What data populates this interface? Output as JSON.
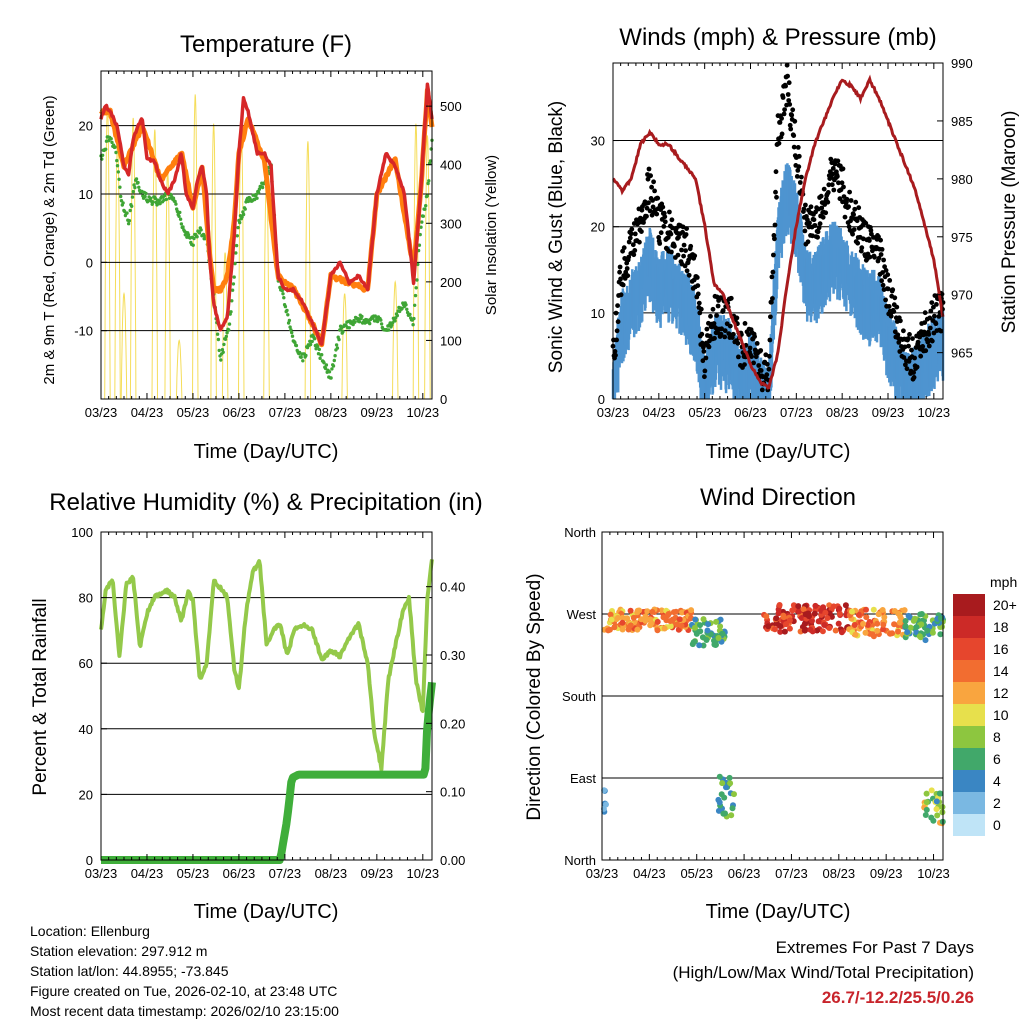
{
  "chart_data": [
    {
      "type": "line",
      "title": "Temperature (F)",
      "xlabel": "Time (Day/UTC)",
      "ylabel": "2m & 9m T (Red, Orange) & 2m Td (Green)",
      "y2label": "Solar Insolation (Yellow)",
      "ylim": [
        -20,
        28
      ],
      "y2lim": [
        0,
        560
      ],
      "yticks": [
        "20",
        "10",
        "0",
        "-10"
      ],
      "y2ticks": [
        "500",
        "400",
        "300",
        "200",
        "100",
        "0"
      ],
      "categories": [
        "03/23",
        "04/23",
        "05/23",
        "06/23",
        "07/23",
        "08/23",
        "09/23",
        "10/23"
      ],
      "series": [
        {
          "name": "2m T",
          "color": "#d62728",
          "x": [
            0,
            0.1,
            0.2,
            0.35,
            0.5,
            0.6,
            0.7,
            0.8,
            0.9,
            1.0,
            1.15,
            1.3,
            1.45,
            1.6,
            1.75,
            1.85,
            2.0,
            2.1,
            2.2,
            2.3,
            2.35,
            2.45,
            2.6,
            2.75,
            2.9,
            3.0,
            3.1,
            3.2,
            3.4,
            3.55,
            3.7,
            3.85,
            4.0,
            4.2,
            4.4,
            4.6,
            4.8,
            5.0,
            5.2,
            5.4,
            5.6,
            5.8,
            6.0,
            6.2,
            6.4,
            6.6,
            6.8,
            6.95,
            7.1,
            7.2
          ],
          "values": [
            21,
            23,
            22,
            20,
            14,
            13,
            18,
            20,
            21,
            15,
            15,
            12,
            10,
            12,
            16,
            10,
            8,
            12,
            14,
            10,
            2,
            -6,
            -10,
            -8,
            4,
            16,
            24,
            22,
            16,
            16,
            14,
            -2,
            -4,
            -4,
            -6,
            -9,
            -12,
            -2,
            0,
            -3,
            -2,
            -4,
            10,
            16,
            14,
            10,
            -3,
            10,
            26,
            21
          ]
        },
        {
          "name": "9m T",
          "color": "#ff7f0e",
          "x": [
            0,
            0.2,
            0.5,
            0.9,
            1.3,
            1.75,
            2.0,
            2.2,
            2.35,
            2.45,
            2.6,
            2.75,
            2.9,
            3.0,
            3.2,
            3.55,
            3.85,
            4.2,
            4.6,
            4.8,
            5.0,
            5.4,
            5.8,
            6.0,
            6.4,
            6.8,
            6.95,
            7.1,
            7.2
          ],
          "values": [
            22,
            22,
            14,
            20,
            12,
            16,
            8,
            14,
            2,
            -4,
            -4,
            -2,
            6,
            16,
            21,
            15,
            -2,
            -4,
            -9,
            -12,
            -2,
            -3,
            -4,
            10,
            15,
            -1,
            10,
            25,
            20
          ]
        },
        {
          "name": "2m Td",
          "color": "#3fa535",
          "x": [
            0,
            0.15,
            0.3,
            0.45,
            0.6,
            0.75,
            0.9,
            1.1,
            1.3,
            1.5,
            1.7,
            1.85,
            2.0,
            2.15,
            2.3,
            2.45,
            2.6,
            2.8,
            3.0,
            3.2,
            3.4,
            3.55,
            3.7,
            3.85,
            4.0,
            4.2,
            4.4,
            4.6,
            4.8,
            5.0,
            5.2,
            5.4,
            5.6,
            5.8,
            6.0,
            6.2,
            6.4,
            6.6,
            6.8,
            6.95,
            7.1,
            7.2
          ],
          "values": [
            15,
            18,
            17,
            9,
            6,
            12,
            10,
            9,
            9,
            10,
            7,
            4,
            3,
            5,
            3,
            -5,
            -14,
            -9,
            6,
            9,
            10,
            12,
            14,
            -2,
            -6,
            -12,
            -14,
            -11,
            -14,
            -17,
            -10,
            -9,
            -8,
            -9,
            -8,
            -10,
            -8,
            -6,
            -9,
            5,
            10,
            18
          ]
        },
        {
          "name": "Solar Insolation",
          "color": "#f5dd5a",
          "axis": "y2",
          "peaks": [
            0.14,
            0.36,
            0.5,
            0.7,
            1.17,
            1.45,
            1.7,
            2.05,
            2.45,
            2.7,
            3.05,
            3.6,
            4.5,
            5.3,
            6.4,
            6.85,
            7.1
          ],
          "peak_values": [
            500,
            440,
            180,
            480,
            460,
            390,
            100,
            520,
            470,
            250,
            480,
            380,
            440,
            180,
            200,
            470,
            450
          ]
        }
      ]
    },
    {
      "type": "line",
      "title": "Winds (mph) & Pressure (mb)",
      "xlabel": "Time (Day/UTC)",
      "ylabel": "Sonic Wind & Gust (Blue, Black)",
      "y2label": "Station Pressure (Maroon)",
      "ylim": [
        0,
        39
      ],
      "y2lim": [
        961,
        990
      ],
      "yticks": [
        "30",
        "20",
        "10",
        "0"
      ],
      "y2ticks": [
        "990",
        "985",
        "980",
        "975",
        "970",
        "965"
      ],
      "categories": [
        "03/23",
        "04/23",
        "05/23",
        "06/23",
        "07/23",
        "08/23",
        "09/23",
        "10/23"
      ],
      "series": [
        {
          "name": "Sonic Wind",
          "color": "#4e94d0",
          "x": [
            0,
            0.2,
            0.4,
            0.6,
            0.8,
            1.0,
            1.2,
            1.4,
            1.6,
            1.8,
            2.0,
            2.2,
            2.4,
            2.6,
            2.8,
            3.0,
            3.2,
            3.4,
            3.6,
            3.8,
            4.0,
            4.2,
            4.4,
            4.6,
            4.8,
            5.0,
            5.2,
            5.4,
            5.6,
            5.8,
            6.0,
            6.2,
            6.4,
            6.6,
            6.8,
            7.0,
            7.2
          ],
          "values": [
            2,
            10,
            12,
            14,
            17,
            14,
            15,
            13,
            12,
            10,
            2,
            7,
            7,
            6,
            3,
            5,
            2,
            1,
            20,
            25,
            22,
            15,
            14,
            16,
            18,
            17,
            15,
            13,
            12,
            12,
            8,
            5,
            3,
            3,
            5,
            7,
            8
          ]
        },
        {
          "name": "Gust",
          "color": "#000000",
          "x": [
            0,
            0.2,
            0.4,
            0.6,
            0.8,
            1.0,
            1.2,
            1.4,
            1.6,
            1.8,
            2.0,
            2.2,
            2.4,
            2.6,
            2.8,
            3.0,
            3.2,
            3.4,
            3.6,
            3.8,
            4.0,
            4.2,
            4.4,
            4.6,
            4.8,
            5.0,
            5.2,
            5.4,
            5.6,
            5.8,
            6.0,
            6.2,
            6.4,
            6.6,
            6.8,
            7.0,
            7.2
          ],
          "values": [
            4,
            15,
            17,
            20,
            24,
            20,
            19,
            18,
            17,
            14,
            4,
            9,
            9,
            9,
            5,
            7,
            3,
            2,
            30,
            36,
            28,
            20,
            19,
            22,
            26,
            24,
            21,
            19,
            17,
            17,
            12,
            8,
            5,
            4,
            7,
            9,
            10
          ]
        },
        {
          "name": "Station Pressure",
          "color": "#a81b1e",
          "axis": "y2",
          "x": [
            0,
            0.2,
            0.4,
            0.6,
            0.8,
            1.0,
            1.2,
            1.4,
            1.6,
            1.8,
            2.0,
            2.2,
            2.4,
            2.6,
            2.8,
            3.0,
            3.2,
            3.4,
            3.6,
            3.8,
            4.0,
            4.2,
            4.4,
            4.6,
            4.8,
            5.0,
            5.2,
            5.4,
            5.6,
            5.8,
            6.0,
            6.2,
            6.4,
            6.6,
            6.8,
            7.0,
            7.2
          ],
          "values": [
            980,
            979,
            980,
            983,
            984,
            983,
            983,
            982,
            981,
            980,
            976,
            971,
            970,
            968,
            966,
            964,
            962.5,
            962,
            965,
            971,
            976,
            980,
            983,
            985,
            987,
            988.5,
            988,
            987,
            988.5,
            987,
            985,
            983,
            981,
            979,
            976,
            973,
            968
          ]
        }
      ]
    },
    {
      "type": "line",
      "title": "Relative Humidity (%) & Precipitation (in)",
      "xlabel": "Time (Day/UTC)",
      "ylabel": "Percent & Total Rainfall",
      "ylim": [
        0,
        100
      ],
      "y2lim": [
        0,
        0.48
      ],
      "yticks": [
        "100",
        "80",
        "60",
        "40",
        "20",
        "0"
      ],
      "y2ticks": [
        "0.40",
        "0.30",
        "0.20",
        "0.10",
        "0.00"
      ],
      "categories": [
        "03/23",
        "04/23",
        "05/23",
        "06/23",
        "07/23",
        "08/23",
        "09/23",
        "10/23"
      ],
      "series": [
        {
          "name": "Relative Humidity",
          "color": "#94c94a",
          "x": [
            0,
            0.1,
            0.25,
            0.4,
            0.55,
            0.7,
            0.85,
            1.0,
            1.15,
            1.3,
            1.45,
            1.6,
            1.75,
            1.9,
            2.0,
            2.15,
            2.3,
            2.45,
            2.6,
            2.75,
            2.9,
            3.0,
            3.15,
            3.3,
            3.45,
            3.6,
            3.75,
            3.9,
            4.05,
            4.2,
            4.4,
            4.6,
            4.8,
            5.0,
            5.2,
            5.4,
            5.6,
            5.8,
            5.95,
            6.1,
            6.25,
            6.4,
            6.55,
            6.7,
            6.85,
            7.0,
            7.1,
            7.2
          ],
          "values": [
            70,
            82,
            86,
            62,
            84,
            86,
            65,
            75,
            80,
            81,
            82,
            80,
            73,
            82,
            79,
            55,
            60,
            85,
            83,
            80,
            58,
            52,
            75,
            88,
            91,
            66,
            70,
            72,
            62,
            70,
            72,
            70,
            61,
            64,
            62,
            68,
            72,
            60,
            38,
            28,
            55,
            65,
            75,
            80,
            55,
            45,
            80,
            92
          ]
        },
        {
          "name": "Total Precipitation",
          "color": "#3fae3a",
          "axis": "y2",
          "x": [
            0,
            1,
            2,
            3,
            3.9,
            4.05,
            4.15,
            4.3,
            5,
            6,
            6.9,
            7.05,
            7.1,
            7.2
          ],
          "values": [
            0,
            0,
            0,
            0,
            0,
            0.06,
            0.12,
            0.125,
            0.125,
            0.125,
            0.125,
            0.125,
            0.2,
            0.26
          ]
        }
      ]
    },
    {
      "type": "scatter",
      "title": "Wind Direction",
      "xlabel": "Time (Day/UTC)",
      "ylabel": "Direction (Colored By Speed)",
      "yticks": [
        "North",
        "West",
        "South",
        "East",
        "North"
      ],
      "ylim": [
        0,
        360
      ],
      "categories": [
        "03/23",
        "04/23",
        "05/23",
        "06/23",
        "07/23",
        "08/23",
        "09/23",
        "10/23"
      ],
      "legend_title": "mph",
      "legend_labels": [
        "20+",
        "18",
        "16",
        "14",
        "12",
        "10",
        "8",
        "6",
        "4",
        "2",
        "0"
      ],
      "legend_colors": [
        "#a81b1e",
        "#cc2a27",
        "#e6462d",
        "#f26d30",
        "#f9a53f",
        "#e7e04c",
        "#8dc63f",
        "#41a86a",
        "#3a86c3",
        "#7ab8e2",
        "#bfe4f7"
      ],
      "clusters": [
        {
          "x": [
            0,
            1.9
          ],
          "dir": [
            252,
            275
          ],
          "speed": [
            10,
            16
          ]
        },
        {
          "x": [
            1.9,
            2.6
          ],
          "dir": [
            235,
            265
          ],
          "speed": [
            4,
            8
          ]
        },
        {
          "x": [
            3.4,
            5.2
          ],
          "dir": [
            250,
            280
          ],
          "speed": [
            14,
            22
          ]
        },
        {
          "x": [
            5.2,
            6.4
          ],
          "dir": [
            245,
            275
          ],
          "speed": [
            10,
            16
          ]
        },
        {
          "x": [
            6.4,
            7.2
          ],
          "dir": [
            240,
            270
          ],
          "speed": [
            4,
            8
          ]
        },
        {
          "x": [
            2.45,
            2.8
          ],
          "dir": [
            40,
            100
          ],
          "speed": [
            4,
            8
          ]
        },
        {
          "x": [
            0,
            0.1
          ],
          "dir": [
            40,
            80
          ],
          "speed": [
            2,
            4
          ]
        },
        {
          "x": [
            6.8,
            7.2
          ],
          "dir": [
            40,
            80
          ],
          "speed": [
            4,
            12
          ]
        }
      ]
    }
  ],
  "info": {
    "location": "Location: Ellenburg",
    "elevation": "Station elevation: 297.912 m",
    "latlon": "Station lat/lon: 44.8955; -73.845",
    "created": "Figure created on Tue, 2026-02-10, at 23:48 UTC",
    "recent": "Most recent data timestamp: 2026/02/10 23:15:00"
  },
  "extremes": {
    "title": "Extremes For Past 7 Days",
    "subtitle": "(High/Low/Max Wind/Total Precipitation)",
    "values": "26.7/-12.2/25.5/0.26",
    "color": "#c8242b"
  }
}
